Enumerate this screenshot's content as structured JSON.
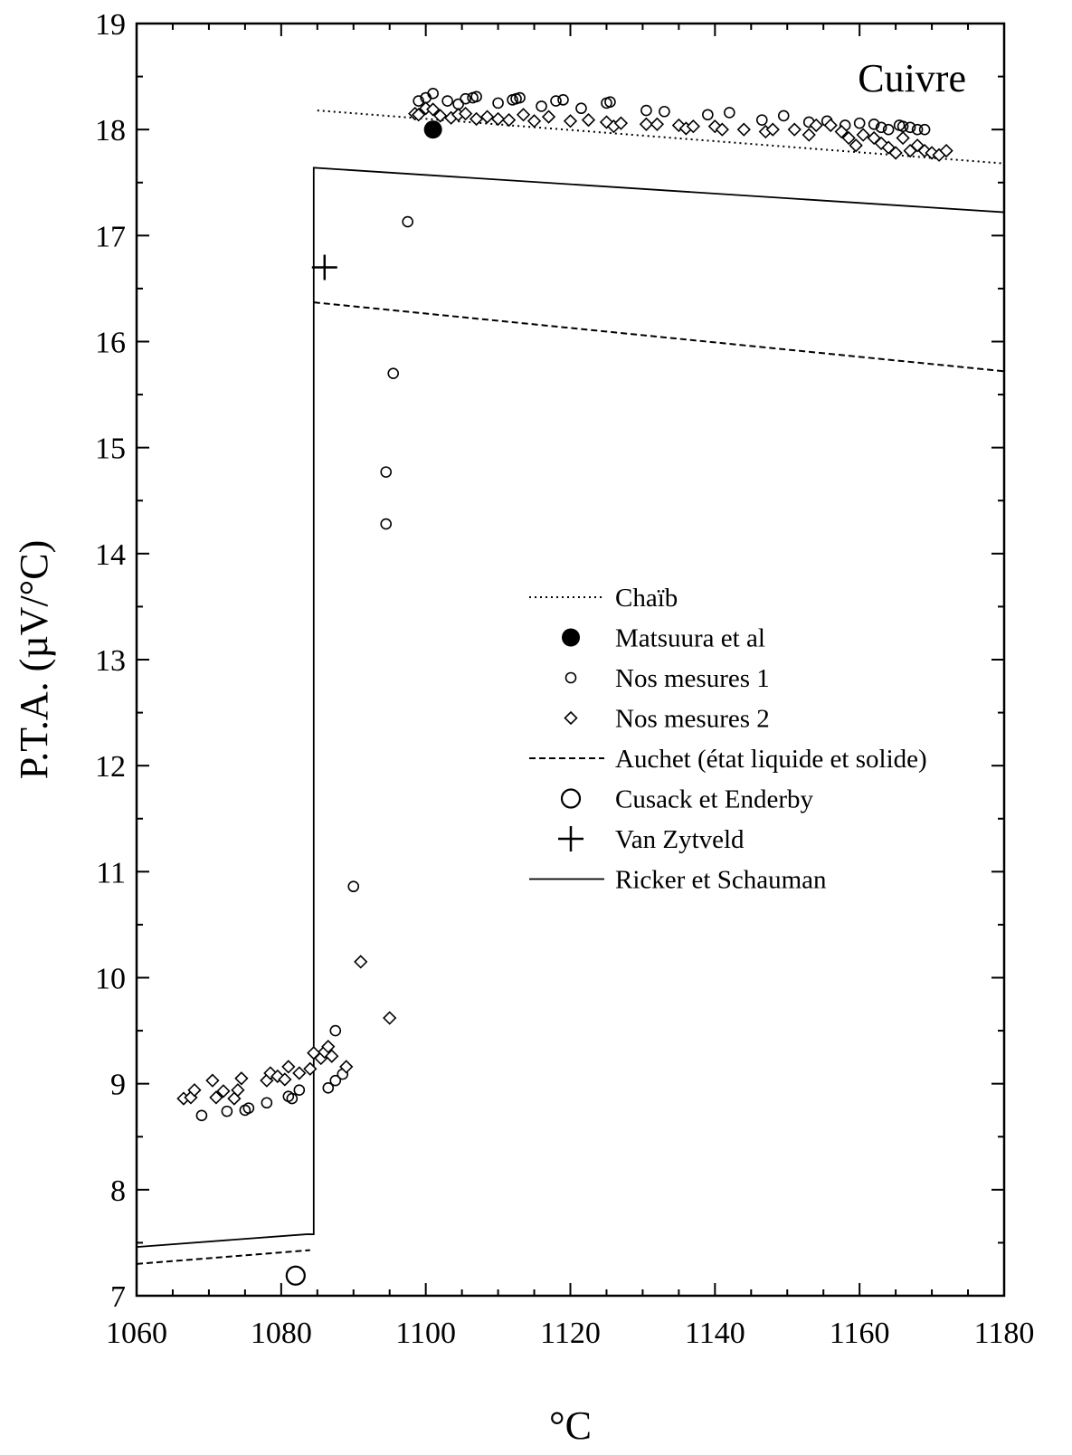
{
  "chart_data": {
    "type": "scatter",
    "title": "",
    "annotation": "Cuivre",
    "xlabel": "°C",
    "ylabel": "P.T.A. (µV/°C)",
    "xlim": [
      1060,
      1180
    ],
    "ylim": [
      7,
      19
    ],
    "x_ticks": [
      "1060",
      "1080",
      "1100",
      "1120",
      "1140",
      "1160",
      "1180"
    ],
    "y_ticks": [
      "7",
      "8",
      "9",
      "10",
      "11",
      "12",
      "13",
      "14",
      "15",
      "16",
      "17",
      "18",
      "19"
    ],
    "grid": false,
    "legend_position": "center-right",
    "legend": [
      {
        "label": "Chaïb",
        "marker": "dotted-line"
      },
      {
        "label": "Matsuura et al",
        "marker": "filled-circle"
      },
      {
        "label": "Nos mesures 1",
        "marker": "small-circle"
      },
      {
        "label": "Nos mesures 2",
        "marker": "diamond"
      },
      {
        "label": "Auchet (état liquide et solide)",
        "marker": "dashed-line"
      },
      {
        "label": "Cusack et Enderby",
        "marker": "large-circle"
      },
      {
        "label": "Van Zytveld",
        "marker": "plus"
      },
      {
        "label": "Ricker et Schauman",
        "marker": "solid-line"
      }
    ],
    "series": [
      {
        "name": "Chaïb",
        "style": "dotted",
        "x": [
          1085,
          1180
        ],
        "y": [
          18.18,
          17.68
        ]
      },
      {
        "name": "Matsuura et al",
        "style": "filled-circle",
        "x": [
          1101
        ],
        "y": [
          18.0
        ]
      },
      {
        "name": "Nos mesures 1",
        "style": "small-circle",
        "x": [
          1069,
          1072.5,
          1075,
          1075.5,
          1078,
          1081,
          1081.5,
          1082.5,
          1086.5,
          1087.5,
          1087.5,
          1088.5,
          1090,
          1094.5,
          1094.5,
          1095.5,
          1097.5,
          1099,
          1100,
          1101,
          1103,
          1104.5,
          1105.5,
          1106.5,
          1107,
          1110,
          1112,
          1112.5,
          1113,
          1116,
          1118,
          1119,
          1121.5,
          1125,
          1125.5,
          1130.5,
          1133,
          1139,
          1142,
          1146.5,
          1149.5,
          1153,
          1155.5,
          1158,
          1160,
          1162,
          1163,
          1164,
          1165.5,
          1166,
          1167,
          1168,
          1169
        ],
        "y": [
          8.7,
          8.74,
          8.75,
          8.77,
          8.82,
          8.88,
          8.86,
          8.94,
          8.96,
          9.03,
          9.5,
          9.09,
          10.86,
          14.28,
          14.77,
          15.7,
          17.13,
          18.27,
          18.3,
          18.34,
          18.27,
          18.24,
          18.29,
          18.3,
          18.31,
          18.25,
          18.28,
          18.29,
          18.3,
          18.22,
          18.27,
          18.28,
          18.2,
          18.25,
          18.26,
          18.18,
          18.17,
          18.14,
          18.16,
          18.09,
          18.13,
          18.07,
          18.08,
          18.04,
          18.06,
          18.05,
          18.02,
          18.0,
          18.04,
          18.03,
          18.02,
          18.0,
          18.0
        ]
      },
      {
        "name": "Nos mesures 2",
        "style": "diamond",
        "x": [
          1066.5,
          1067.5,
          1068,
          1070.5,
          1071,
          1072,
          1073.5,
          1074,
          1074.5,
          1078,
          1078.5,
          1079.5,
          1080.5,
          1081,
          1082.5,
          1084,
          1084.5,
          1085.5,
          1086,
          1086.5,
          1087,
          1089,
          1091,
          1095,
          1098.5,
          1099,
          1100,
          1101,
          1102,
          1103.5,
          1104.5,
          1105.5,
          1107,
          1108.5,
          1110,
          1111.5,
          1113.5,
          1115,
          1117,
          1120,
          1122.5,
          1125,
          1126,
          1127,
          1130.5,
          1132,
          1135,
          1136,
          1137,
          1140,
          1141,
          1144,
          1147,
          1148,
          1151,
          1153,
          1154,
          1156,
          1157.5,
          1158.5,
          1159.5,
          1160.5,
          1162,
          1163,
          1164,
          1165,
          1166,
          1167,
          1168,
          1169,
          1170,
          1171,
          1172
        ],
        "y": [
          8.86,
          8.87,
          8.94,
          9.03,
          8.87,
          8.93,
          8.86,
          8.94,
          9.05,
          9.03,
          9.1,
          9.07,
          9.04,
          9.16,
          9.1,
          9.14,
          9.29,
          9.24,
          9.3,
          9.35,
          9.26,
          9.16,
          10.15,
          9.62,
          18.15,
          18.14,
          18.2,
          18.19,
          18.13,
          18.11,
          18.14,
          18.15,
          18.1,
          18.12,
          18.1,
          18.09,
          18.14,
          18.08,
          18.12,
          18.08,
          18.09,
          18.07,
          18.03,
          18.06,
          18.05,
          18.05,
          18.04,
          18.01,
          18.03,
          18.03,
          18.0,
          18.0,
          17.98,
          18.0,
          18.0,
          17.95,
          18.04,
          18.04,
          17.98,
          17.92,
          17.85,
          17.95,
          17.92,
          17.87,
          17.83,
          17.78,
          17.92,
          17.8,
          17.85,
          17.8,
          17.78,
          17.76,
          17.8
        ]
      },
      {
        "name": "Auchet (état liquide et solide)",
        "style": "dashed",
        "segments": [
          {
            "x": [
              1060,
              1084
            ],
            "y": [
              7.3,
              7.43
            ]
          },
          {
            "x": [
              1084.5,
              1180
            ],
            "y": [
              16.37,
              15.72
            ]
          }
        ]
      },
      {
        "name": "Cusack et Enderby",
        "style": "large-circle",
        "x": [
          1082
        ],
        "y": [
          7.19
        ]
      },
      {
        "name": "Van Zytveld",
        "style": "plus",
        "x": [
          1086
        ],
        "y": [
          16.7
        ]
      },
      {
        "name": "Ricker et Schauman",
        "style": "solid",
        "x": [
          1060,
          1083.5,
          1083.5,
          1084.5,
          1084.5,
          1180
        ],
        "y": [
          7.46,
          7.58,
          7.58,
          7.58,
          17.64,
          17.22
        ]
      }
    ]
  }
}
